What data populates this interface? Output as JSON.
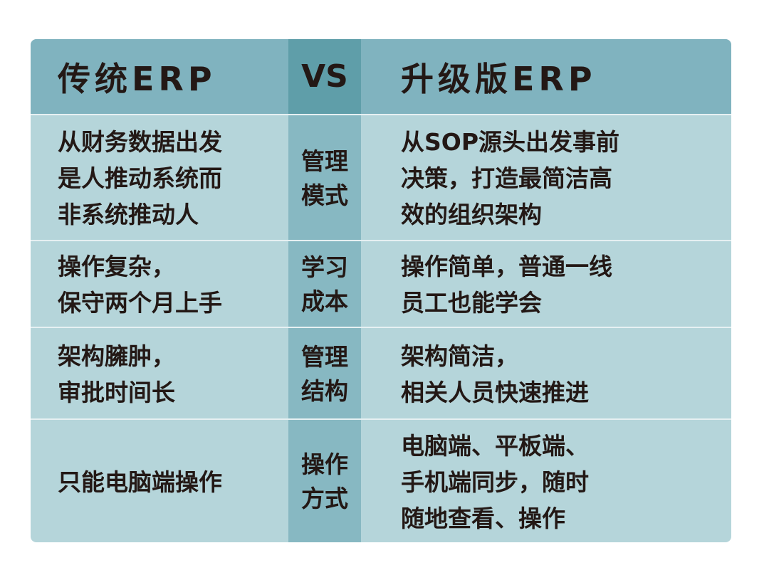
{
  "header": {
    "left": "传统ERP",
    "middle": "VS",
    "right": "升级版ERP"
  },
  "rows": [
    {
      "left": "从财务数据出发\n是人推动系统而\n非系统推动人",
      "middle": "管理\n模式",
      "right": "从SOP源头出发事前\n决策，打造最简洁高\n效的组织架构"
    },
    {
      "left": "操作复杂，\n保守两个月上手",
      "middle": "学习\n成本",
      "right": "操作简单，普通一线\n员工也能学会"
    },
    {
      "left": "架构臃肿，\n审批时间长",
      "middle": "管理\n结构",
      "right": "架构简洁，\n相关人员快速推进"
    },
    {
      "left": "只能电脑端操作",
      "middle": "操作\n方式",
      "right": "电脑端、平板端、\n手机端同步，随时\n随地查看、操作"
    }
  ],
  "colors": {
    "header": "#80b3bf",
    "vs_header": "#5f9ea9",
    "middle_column": "#87b8c2",
    "body": "#b5d5da",
    "text": "#231815"
  }
}
